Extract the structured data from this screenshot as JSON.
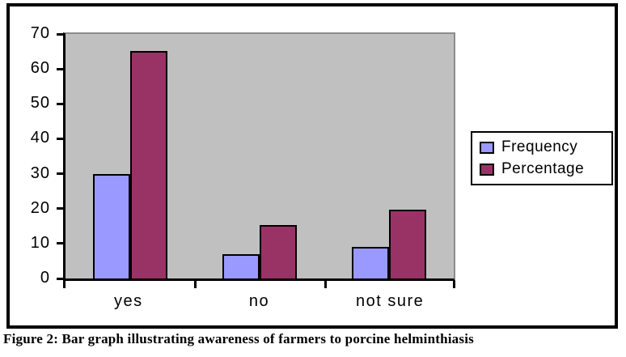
{
  "figure": {
    "caption": "Figure 2: Bar graph illustrating awareness of farmers to porcine helminthiasis"
  },
  "colors": {
    "frequency": "#9999FF",
    "percentage": "#993366",
    "plot_bg": "#C0C0C0",
    "plot_border": "#8C8C8C",
    "axis": "#000000",
    "legend_bg": "#FFFFFF",
    "frame_border": "#000000"
  },
  "chart_data": {
    "type": "bar",
    "categories": [
      "yes",
      "no",
      "not sure"
    ],
    "series": [
      {
        "name": "Frequency",
        "values": [
          30,
          7,
          9
        ],
        "color": "#9999FF"
      },
      {
        "name": "Percentage",
        "values": [
          65.2,
          15.2,
          19.6
        ],
        "color": "#993366"
      }
    ],
    "title": "",
    "xlabel": "",
    "ylabel": "",
    "ylim": [
      0,
      70
    ],
    "yticks": [
      0,
      10,
      20,
      30,
      40,
      50,
      60,
      70
    ],
    "grid": false,
    "legend_position": "right",
    "plot_area_background": "#C0C0C0"
  }
}
